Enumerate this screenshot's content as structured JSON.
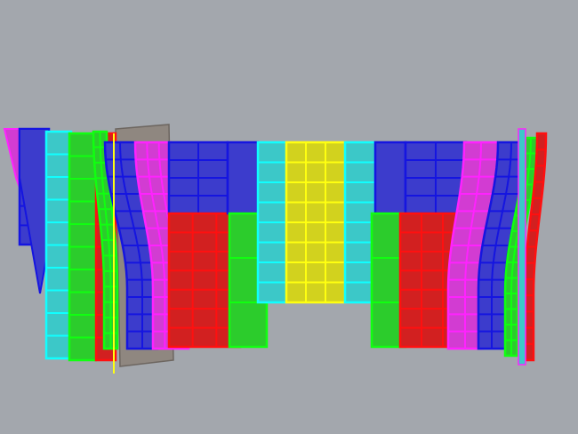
{
  "viewport": {
    "background": "#a3a7ad",
    "panel_colors": {
      "blue": "#3c3ccc",
      "blue_edge": "#1515e0",
      "magenta": "#d23cd2",
      "magenta_edge": "#ff22ff",
      "red": "#d22020",
      "red_edge": "#ff1010",
      "green": "#2ccc2c",
      "green_edge": "#10ff10",
      "cyan": "#3cc8c8",
      "cyan_edge": "#10ffff",
      "yellow": "#d2d21e",
      "yellow_edge": "#ffff10",
      "backing": "#8f8780"
    }
  }
}
